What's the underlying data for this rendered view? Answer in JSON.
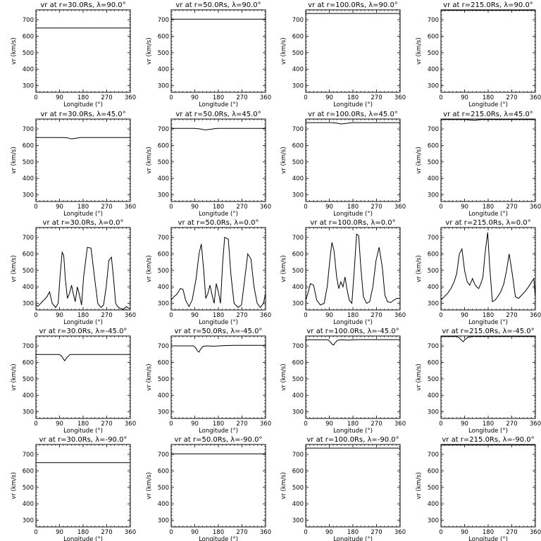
{
  "figure": {
    "xlabel": "Longitude (°)",
    "ylabel": "vr (km/s)",
    "x_ticks": [
      "0",
      "90",
      "180",
      "270",
      "360"
    ],
    "y_ticks": [
      "300",
      "400",
      "500",
      "600",
      "700"
    ]
  },
  "chart_data": [
    {
      "type": "line",
      "title": "vr at r=30.0Rs, λ=90.0°",
      "xlabel": "Longitude (°)",
      "ylabel": "vr (km/s)",
      "xlim": [
        0,
        360
      ],
      "ylim": [
        260,
        760
      ],
      "series": [
        {
          "x": [
            0,
            360
          ],
          "y": [
            650,
            650
          ]
        }
      ]
    },
    {
      "type": "line",
      "title": "vr at r=50.0Rs, λ=90.0°",
      "xlabel": "Longitude (°)",
      "ylabel": "vr (km/s)",
      "xlim": [
        0,
        360
      ],
      "ylim": [
        260,
        760
      ],
      "series": [
        {
          "x": [
            0,
            360
          ],
          "y": [
            703,
            703
          ]
        }
      ]
    },
    {
      "type": "line",
      "title": "vr at r=100.0Rs, λ=90.0°",
      "xlabel": "Longitude (°)",
      "ylabel": "vr (km/s)",
      "xlim": [
        0,
        360
      ],
      "ylim": [
        260,
        760
      ],
      "series": [
        {
          "x": [
            0,
            360
          ],
          "y": [
            738,
            738
          ]
        }
      ]
    },
    {
      "type": "line",
      "title": "vr at r=215.0Rs, λ=90.0°",
      "xlabel": "Longitude (°)",
      "ylabel": "vr (km/s)",
      "xlim": [
        0,
        360
      ],
      "ylim": [
        260,
        760
      ],
      "series": [
        {
          "x": [
            0,
            360
          ],
          "y": [
            757,
            757
          ]
        }
      ]
    },
    {
      "type": "line",
      "title": "vr at r=30.0Rs, λ=45.0°",
      "xlabel": "Longitude (°)",
      "ylabel": "vr (km/s)",
      "xlim": [
        0,
        360
      ],
      "ylim": [
        260,
        760
      ],
      "series": [
        {
          "x": [
            0,
            100,
            120,
            135,
            150,
            170,
            360
          ],
          "y": [
            648,
            648,
            646,
            640,
            643,
            648,
            648
          ]
        }
      ]
    },
    {
      "type": "line",
      "title": "vr at r=50.0Rs, λ=45.0°",
      "xlabel": "Longitude (°)",
      "ylabel": "vr (km/s)",
      "xlim": [
        0,
        360
      ],
      "ylim": [
        260,
        760
      ],
      "series": [
        {
          "x": [
            0,
            90,
            110,
            130,
            150,
            175,
            360
          ],
          "y": [
            703,
            703,
            700,
            694,
            698,
            703,
            703
          ]
        }
      ]
    },
    {
      "type": "line",
      "title": "vr at r=100.0Rs, λ=45.0°",
      "xlabel": "Longitude (°)",
      "ylabel": "vr (km/s)",
      "xlim": [
        0,
        360
      ],
      "ylim": [
        260,
        760
      ],
      "series": [
        {
          "x": [
            0,
            100,
            120,
            135,
            155,
            175,
            360
          ],
          "y": [
            738,
            738,
            735,
            730,
            734,
            738,
            738
          ]
        }
      ]
    },
    {
      "type": "line",
      "title": "vr at r=215.0Rs, λ=45.0°",
      "xlabel": "Longitude (°)",
      "ylabel": "vr (km/s)",
      "xlim": [
        0,
        360
      ],
      "ylim": [
        260,
        760
      ],
      "series": [
        {
          "x": [
            0,
            90,
            110,
            130,
            150,
            360
          ],
          "y": [
            757,
            757,
            755,
            752,
            757,
            757
          ]
        }
      ]
    },
    {
      "type": "line",
      "title": "vr at r=30.0Rs, λ=0.0°",
      "xlabel": "Longitude (°)",
      "ylabel": "vr (km/s)",
      "xlim": [
        0,
        360
      ],
      "ylim": [
        260,
        760
      ],
      "series": [
        {
          "x": [
            0,
            8,
            18,
            30,
            42,
            52,
            62,
            75,
            85,
            92,
            100,
            106,
            112,
            120,
            128,
            136,
            142,
            150,
            158,
            166,
            174,
            182,
            196,
            210,
            224,
            236,
            248,
            258,
            268,
            278,
            288,
            296,
            304,
            312,
            320,
            335,
            345,
            355,
            360
          ],
          "y": [
            290,
            282,
            300,
            320,
            340,
            370,
            300,
            275,
            300,
            460,
            610,
            590,
            450,
            330,
            360,
            410,
            360,
            310,
            400,
            350,
            290,
            460,
            640,
            635,
            450,
            300,
            275,
            290,
            400,
            560,
            580,
            450,
            300,
            280,
            270,
            265,
            280,
            270,
            270
          ]
        }
      ]
    },
    {
      "type": "line",
      "title": "vr at r=50.0Rs, λ=0.0°",
      "xlabel": "Longitude (°)",
      "ylabel": "vr (km/s)",
      "xlim": [
        0,
        360
      ],
      "ylim": [
        260,
        760
      ],
      "series": [
        {
          "x": [
            0,
            10,
            22,
            35,
            45,
            55,
            68,
            80,
            95,
            106,
            115,
            124,
            132,
            140,
            148,
            156,
            164,
            172,
            180,
            188,
            196,
            204,
            218,
            228,
            240,
            255,
            268,
            280,
            292,
            304,
            316,
            328,
            340,
            352,
            360
          ],
          "y": [
            320,
            340,
            355,
            390,
            385,
            320,
            280,
            320,
            450,
            600,
            660,
            500,
            330,
            360,
            410,
            350,
            300,
            420,
            370,
            300,
            540,
            700,
            690,
            470,
            300,
            275,
            290,
            440,
            600,
            570,
            400,
            300,
            275,
            300,
            360
          ]
        }
      ]
    },
    {
      "type": "line",
      "title": "vr at r=100.0Rs, λ=0.0°",
      "xlabel": "Longitude (°)",
      "ylabel": "vr (km/s)",
      "xlim": [
        0,
        360
      ],
      "ylim": [
        260,
        760
      ],
      "series": [
        {
          "x": [
            0,
            8,
            18,
            30,
            42,
            56,
            70,
            82,
            92,
            100,
            108,
            118,
            126,
            134,
            142,
            150,
            158,
            166,
            176,
            186,
            194,
            202,
            210,
            220,
            232,
            244,
            256,
            268,
            280,
            292,
            302,
            312,
            324,
            336,
            348,
            360
          ],
          "y": [
            320,
            360,
            420,
            410,
            320,
            290,
            300,
            400,
            560,
            670,
            620,
            460,
            390,
            430,
            400,
            460,
            380,
            320,
            300,
            520,
            720,
            710,
            520,
            340,
            300,
            310,
            400,
            560,
            640,
            520,
            350,
            310,
            305,
            320,
            330,
            330
          ]
        }
      ]
    },
    {
      "type": "line",
      "title": "vr at r=215.0Rs, λ=0.0°",
      "xlabel": "Longitude (°)",
      "ylabel": "vr (km/s)",
      "xlim": [
        0,
        360
      ],
      "ylim": [
        260,
        760
      ],
      "series": [
        {
          "x": [
            0,
            12,
            25,
            38,
            50,
            60,
            70,
            80,
            90,
            100,
            110,
            120,
            128,
            136,
            144,
            152,
            160,
            168,
            178,
            186,
            196,
            206,
            216,
            228,
            240,
            250,
            260,
            272,
            284,
            296,
            308,
            320,
            334,
            346,
            354,
            360
          ],
          "y": [
            320,
            340,
            360,
            390,
            430,
            480,
            600,
            630,
            500,
            430,
            410,
            450,
            420,
            400,
            390,
            420,
            460,
            600,
            730,
            520,
            310,
            320,
            340,
            370,
            420,
            500,
            600,
            480,
            340,
            330,
            350,
            370,
            400,
            430,
            450,
            340
          ]
        }
      ]
    },
    {
      "type": "line",
      "title": "vr at r=30.0Rs, λ=-45.0°",
      "xlabel": "Longitude (°)",
      "ylabel": "vr (km/s)",
      "xlim": [
        0,
        360
      ],
      "ylim": [
        260,
        760
      ],
      "series": [
        {
          "x": [
            0,
            90,
            98,
            105,
            110,
            118,
            130,
            360
          ],
          "y": [
            648,
            648,
            638,
            620,
            610,
            630,
            648,
            648
          ]
        }
      ]
    },
    {
      "type": "line",
      "title": "vr at r=50.0Rs, λ=-45.0°",
      "xlabel": "Longitude (°)",
      "ylabel": "vr (km/s)",
      "xlim": [
        0,
        360
      ],
      "ylim": [
        260,
        760
      ],
      "series": [
        {
          "x": [
            0,
            85,
            93,
            100,
            106,
            112,
            122,
            140,
            160,
            200,
            240,
            360
          ],
          "y": [
            700,
            700,
            690,
            670,
            662,
            680,
            698,
            700,
            698,
            702,
            703,
            703
          ]
        }
      ]
    },
    {
      "type": "line",
      "title": "vr at r=100.0Rs, λ=-45.0°",
      "xlabel": "Longitude (°)",
      "ylabel": "vr (km/s)",
      "xlim": [
        0,
        360
      ],
      "ylim": [
        260,
        760
      ],
      "series": [
        {
          "x": [
            0,
            85,
            93,
            100,
            106,
            112,
            122,
            140,
            160,
            200,
            360
          ],
          "y": [
            737,
            737,
            726,
            712,
            705,
            720,
            735,
            737,
            735,
            738,
            738
          ]
        }
      ]
    },
    {
      "type": "line",
      "title": "vr at r=215.0Rs, λ=-45.0°",
      "xlabel": "Longitude (°)",
      "ylabel": "vr (km/s)",
      "xlim": [
        0,
        360
      ],
      "ylim": [
        260,
        760
      ],
      "series": [
        {
          "x": [
            0,
            60,
            70,
            78,
            85,
            92,
            102,
            120,
            360
          ],
          "y": [
            757,
            757,
            748,
            735,
            725,
            738,
            752,
            757,
            757
          ]
        }
      ]
    },
    {
      "type": "line",
      "title": "vr at r=30.0Rs, λ=-90.0°",
      "xlabel": "Longitude (°)",
      "ylabel": "vr (km/s)",
      "xlim": [
        0,
        360
      ],
      "ylim": [
        260,
        760
      ],
      "series": [
        {
          "x": [
            0,
            360
          ],
          "y": [
            650,
            650
          ]
        }
      ]
    },
    {
      "type": "line",
      "title": "vr at r=50.0Rs, λ=-90.0°",
      "xlabel": "Longitude (°)",
      "ylabel": "vr (km/s)",
      "xlim": [
        0,
        360
      ],
      "ylim": [
        260,
        760
      ],
      "series": [
        {
          "x": [
            0,
            360
          ],
          "y": [
            703,
            703
          ]
        }
      ]
    },
    {
      "type": "line",
      "title": "vr at r=100.0Rs, λ=-90.0°",
      "xlabel": "Longitude (°)",
      "ylabel": "vr (km/s)",
      "xlim": [
        0,
        360
      ],
      "ylim": [
        260,
        760
      ],
      "series": [
        {
          "x": [
            0,
            360
          ],
          "y": [
            738,
            738
          ]
        }
      ]
    },
    {
      "type": "line",
      "title": "vr at r=215.0Rs, λ=-90.0°",
      "xlabel": "Longitude (°)",
      "ylabel": "vr (km/s)",
      "xlim": [
        0,
        360
      ],
      "ylim": [
        260,
        760
      ],
      "series": [
        {
          "x": [
            0,
            360
          ],
          "y": [
            757,
            757
          ]
        }
      ]
    }
  ]
}
